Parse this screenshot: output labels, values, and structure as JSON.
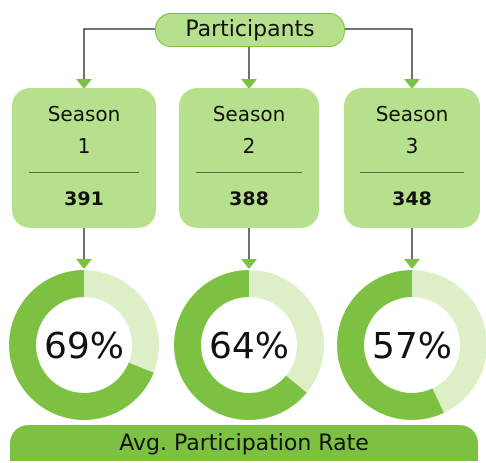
{
  "root": {
    "label": "Participants"
  },
  "seasons": [
    {
      "label": "Season 1",
      "count": "391",
      "rate": 69,
      "rate_label": "69%"
    },
    {
      "label": "Season 2",
      "count": "388",
      "rate": 64,
      "rate_label": "64%"
    },
    {
      "label": "Season 3",
      "count": "348",
      "rate": 57,
      "rate_label": "57%"
    }
  ],
  "footer": {
    "label": "Avg. Participation Rate"
  }
}
